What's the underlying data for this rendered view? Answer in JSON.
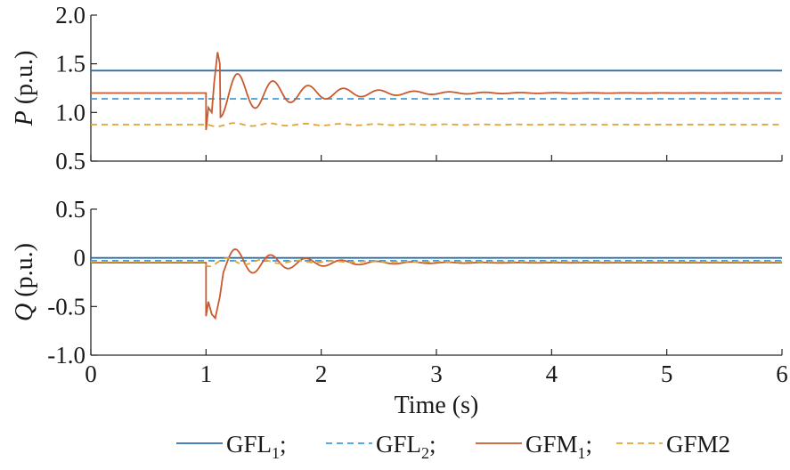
{
  "chart_data": [
    {
      "type": "line",
      "title": "",
      "ylabel_symbol": "P",
      "ylabel_unit": " (p.u.)",
      "xlim": [
        0,
        6
      ],
      "ylim": [
        0.5,
        2.0
      ],
      "y_ticks": [
        "2.0",
        "1.5",
        "1.0",
        "0.5"
      ],
      "y_tick_values": [
        2.0,
        1.5,
        1.0,
        0.5
      ],
      "grid": false,
      "event_time": 1.0,
      "series": [
        {
          "key": "GFL1",
          "color": "#2e6fa8",
          "style": "solid",
          "before": 1.43,
          "after": 1.43,
          "osc": {
            "amp": 0.0,
            "omega": 0,
            "tau": 1
          }
        },
        {
          "key": "GFL2",
          "color": "#4a9bd4",
          "style": "dashed",
          "before": 1.14,
          "after": 1.14,
          "osc": {
            "amp": 0.0,
            "omega": 0,
            "tau": 1
          }
        },
        {
          "key": "GFM1",
          "color": "#c85a2e",
          "style": "solid",
          "before": 1.2,
          "after": 1.2,
          "dip": {
            "t": [
              1.0,
              1.02,
              1.05,
              1.07
            ],
            "y": [
              0.82,
              1.05,
              1.0,
              1.3
            ]
          },
          "peak": {
            "t": [
              1.1,
              1.12
            ],
            "y": [
              1.62,
              1.5
            ]
          },
          "osc": {
            "amp": 0.3,
            "omega": 20.5,
            "tau": 0.65,
            "phase": 0.6
          }
        },
        {
          "key": "GFM2",
          "color": "#e0a43a",
          "style": "dashed",
          "before": 0.875,
          "after": 0.875,
          "osc": {
            "amp": 0.02,
            "omega": 20.5,
            "tau": 1.2,
            "phase": 1.2
          }
        }
      ]
    },
    {
      "type": "line",
      "title": "",
      "xlabel": "Time (s)",
      "ylabel_symbol": "Q",
      "ylabel_unit": " (p.u.)",
      "xlim": [
        0,
        6
      ],
      "ylim": [
        -1.0,
        0.5
      ],
      "x_ticks": [
        "0",
        "1",
        "2",
        "3",
        "4",
        "5",
        "6"
      ],
      "x_tick_values": [
        0,
        1,
        2,
        3,
        4,
        5,
        6
      ],
      "y_ticks": [
        "0.5",
        "0",
        "-0.5",
        "-1.0"
      ],
      "y_tick_values": [
        0.5,
        0,
        -0.5,
        -1.0
      ],
      "grid": false,
      "event_time": 1.0,
      "series": [
        {
          "key": "GFL1",
          "color": "#2e6fa8",
          "style": "solid",
          "before": 0.0,
          "after": 0.0,
          "osc": {
            "amp": 0.0,
            "omega": 0,
            "tau": 1
          }
        },
        {
          "key": "GFL2",
          "color": "#4a9bd4",
          "style": "dashed",
          "before": -0.03,
          "after": -0.03,
          "osc": {
            "amp": 0.0,
            "omega": 0,
            "tau": 1
          }
        },
        {
          "key": "GFM1",
          "color": "#c85a2e",
          "style": "solid",
          "before": -0.05,
          "after": -0.05,
          "dip": {
            "t": [
              1.0,
              1.02,
              1.05,
              1.08,
              1.12
            ],
            "y": [
              -0.6,
              -0.45,
              -0.58,
              -0.62,
              -0.4
            ]
          },
          "peak": {
            "t": [
              1.15
            ],
            "y": [
              -0.15
            ]
          },
          "osc": {
            "amp": 0.22,
            "omega": 20.5,
            "tau": 0.55,
            "phase": 1.0
          }
        },
        {
          "key": "GFM2",
          "color": "#e0a43a",
          "style": "dashed",
          "before": -0.04,
          "after": -0.04,
          "osc": {
            "amp": 0.05,
            "omega": 20.5,
            "tau": 0.6,
            "phase": 2.5
          }
        }
      ]
    }
  ],
  "legend": {
    "placement": "bottom",
    "entries": [
      {
        "base": "GFL",
        "sub": "1",
        "tail": ";",
        "color": "#2e6fa8",
        "style": "solid"
      },
      {
        "base": "GFL",
        "sub": "2",
        "tail": ";",
        "color": "#4a9bd4",
        "style": "dashed"
      },
      {
        "base": "GFM",
        "sub": "1",
        "tail": ";",
        "color": "#c85a2e",
        "style": "solid"
      },
      {
        "base": "GFM2",
        "sub": "",
        "tail": "",
        "color": "#e0a43a",
        "style": "dashed"
      }
    ]
  }
}
